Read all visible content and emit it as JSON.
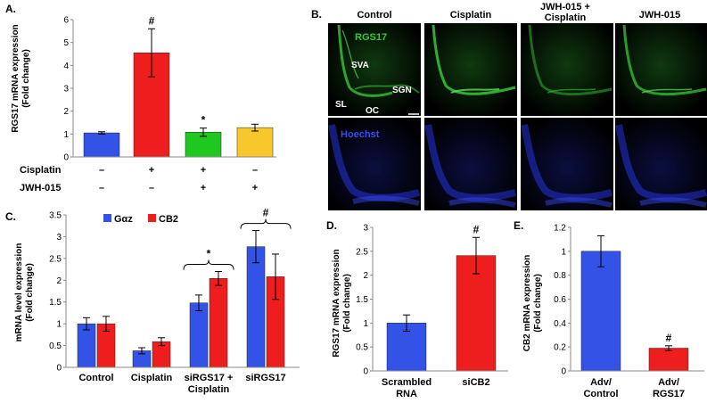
{
  "colors": {
    "blue": "#3352e6",
    "red": "#ef1e1e",
    "green": "#1ec81e",
    "yellow": "#f7c72c",
    "fluor_green": "#35c935",
    "fluor_blue": "#2533d8"
  },
  "panels": {
    "A": {
      "label": "A.",
      "ylabel_line1": "RGS17 mRNA expression",
      "ylabel_line2": "(Fold change)",
      "ticks": [
        "0",
        "1",
        "2",
        "3",
        "4",
        "5",
        "6"
      ],
      "treatment_rows": [
        {
          "name": "Cisplatin",
          "marks": [
            "–",
            "+",
            "+",
            "–"
          ]
        },
        {
          "name": "JWH-015",
          "marks": [
            "–",
            "–",
            "+",
            "+"
          ]
        }
      ]
    },
    "B": {
      "label": "B.",
      "columns": [
        "Control",
        "Cisplatin",
        "JWH-015 +",
        "JWH-015"
      ],
      "column_subtitle": "Cisplatin",
      "stain_top": "RGS17",
      "stain_bottom": "Hoechst",
      "region_labels": {
        "sva": "SVA",
        "sgn": "SGN",
        "sl": "SL",
        "oc": "OC"
      }
    },
    "C": {
      "label": "C.",
      "ylabel_line1": "mRNA level expression",
      "ylabel_line2": "(Fold change)",
      "ticks": [
        "0",
        "0.5",
        "1",
        "1.5",
        "2",
        "2.5",
        "3",
        "3.5"
      ],
      "cat_line1": [
        "Control",
        "Cisplatin",
        "siRGS17 +",
        "siRGS17"
      ],
      "cat_line2": [
        "",
        "",
        "Cisplatin",
        ""
      ]
    },
    "D": {
      "label": "D.",
      "ylabel_line1": "RGS17 mRNA expression",
      "ylabel_line2": "(Fold change)",
      "ticks": [
        "0",
        "0.5",
        "1",
        "1.5",
        "2",
        "2.5",
        "3"
      ],
      "cat_line1": [
        "Scrambled",
        "siCB2"
      ],
      "cat_line2": [
        "RNA",
        ""
      ]
    },
    "E": {
      "label": "E.",
      "ylabel_line1": "CB2 mRNA expression",
      "ylabel_line2": "(Fold change)",
      "ticks": [
        "0",
        "0.2",
        "0.4",
        "0.6",
        "0.8",
        "1",
        "1.2"
      ],
      "cat_line1": [
        "Adv/",
        "Adv/"
      ],
      "cat_line2": [
        "Control",
        "RGS17"
      ]
    }
  },
  "chart_data": [
    {
      "panel": "A",
      "type": "bar",
      "categories": [
        "Control",
        "Cisplatin",
        "JWH-015 + Cisplatin",
        "JWH-015"
      ],
      "values": [
        1.05,
        4.55,
        1.08,
        1.28
      ],
      "errors": [
        0.05,
        1.05,
        0.18,
        0.15
      ],
      "bar_colors": [
        "#3352e6",
        "#ef1e1e",
        "#1ec81e",
        "#f7c72c"
      ],
      "annotations": [
        "",
        "#",
        "*",
        ""
      ],
      "ylim": [
        0,
        6
      ]
    },
    {
      "panel": "C",
      "type": "bar",
      "categories": [
        "Control",
        "Cisplatin",
        "siRGS17 + Cisplatin",
        "siRGS17"
      ],
      "series": [
        {
          "name": "Gαz",
          "values": [
            1.0,
            0.38,
            1.48,
            2.77
          ],
          "errors": [
            0.14,
            0.07,
            0.18,
            0.37
          ],
          "color": "#3352e6"
        },
        {
          "name": "CB2",
          "values": [
            1.0,
            0.59,
            2.04,
            2.08
          ],
          "errors": [
            0.17,
            0.09,
            0.16,
            0.52
          ],
          "color": "#ef1e1e"
        }
      ],
      "brackets": [
        {
          "category": 2,
          "label": "*"
        },
        {
          "category": 3,
          "label": "#"
        }
      ],
      "legend": "top-left",
      "ylim": [
        0,
        3.5
      ]
    },
    {
      "panel": "D",
      "type": "bar",
      "categories": [
        "Scrambled RNA",
        "siCB2"
      ],
      "values": [
        1.0,
        2.41
      ],
      "errors": [
        0.17,
        0.38
      ],
      "bar_colors": [
        "#3352e6",
        "#ef1e1e"
      ],
      "annotations": [
        "",
        "#"
      ],
      "ylim": [
        0,
        3
      ]
    },
    {
      "panel": "E",
      "type": "bar",
      "categories": [
        "Adv/Control",
        "Adv/RGS17"
      ],
      "values": [
        1.0,
        0.19
      ],
      "errors": [
        0.13,
        0.02
      ],
      "bar_colors": [
        "#3352e6",
        "#ef1e1e"
      ],
      "annotations": [
        "",
        "#"
      ],
      "ylim": [
        0,
        1.2
      ]
    }
  ]
}
